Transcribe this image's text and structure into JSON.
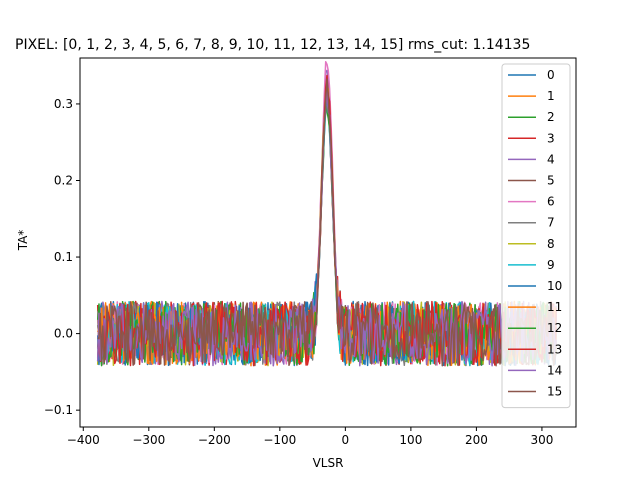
{
  "chart_data": {
    "type": "line",
    "title": "PIXEL: [0, 1, 2, 3, 4, 5, 6, 7, 8, 9, 10, 11, 12, 13, 14, 15]   rms_cut: 1.14135",
    "xlabel": "VLSR",
    "ylabel": "TA*",
    "xlim": [
      -405,
      352
    ],
    "ylim": [
      -0.122,
      0.36
    ],
    "x_ticks": [
      {
        "value": -400,
        "label": "−400"
      },
      {
        "value": -300,
        "label": "−300"
      },
      {
        "value": -200,
        "label": "−200"
      },
      {
        "value": -100,
        "label": "−100"
      },
      {
        "value": 0,
        "label": "0"
      },
      {
        "value": 100,
        "label": "100"
      },
      {
        "value": 200,
        "label": "200"
      },
      {
        "value": 300,
        "label": "300"
      }
    ],
    "y_ticks": [
      {
        "value": -0.1,
        "label": "−0.1"
      },
      {
        "value": 0.0,
        "label": "0.0"
      },
      {
        "value": 0.1,
        "label": "0.1"
      },
      {
        "value": 0.2,
        "label": "0.2"
      },
      {
        "value": 0.3,
        "label": "0.3"
      }
    ],
    "grid": false,
    "legend_position": "top-right",
    "x_range": [
      -378,
      322
    ],
    "line_profile": {
      "noise_amplitude": 0.03,
      "peak_center": -28,
      "peak_width": 8,
      "peak_amplitudes": [
        0.33,
        0.31,
        0.32,
        0.3,
        0.34,
        0.31,
        0.36,
        0.32,
        0.33,
        0.3,
        0.31,
        0.32,
        0.3,
        0.33,
        0.31,
        0.32
      ]
    },
    "series": [
      {
        "name": "0",
        "color": "#1f77b4"
      },
      {
        "name": "1",
        "color": "#ff7f0e"
      },
      {
        "name": "2",
        "color": "#2ca02c"
      },
      {
        "name": "3",
        "color": "#d62728"
      },
      {
        "name": "4",
        "color": "#9467bd"
      },
      {
        "name": "5",
        "color": "#8c564b"
      },
      {
        "name": "6",
        "color": "#e377c2"
      },
      {
        "name": "7",
        "color": "#7f7f7f"
      },
      {
        "name": "8",
        "color": "#bcbd22"
      },
      {
        "name": "9",
        "color": "#17becf"
      },
      {
        "name": "10",
        "color": "#1f77b4"
      },
      {
        "name": "11",
        "color": "#ff7f0e"
      },
      {
        "name": "12",
        "color": "#2ca02c"
      },
      {
        "name": "13",
        "color": "#d62728"
      },
      {
        "name": "14",
        "color": "#9467bd"
      },
      {
        "name": "15",
        "color": "#8c564b"
      }
    ]
  }
}
